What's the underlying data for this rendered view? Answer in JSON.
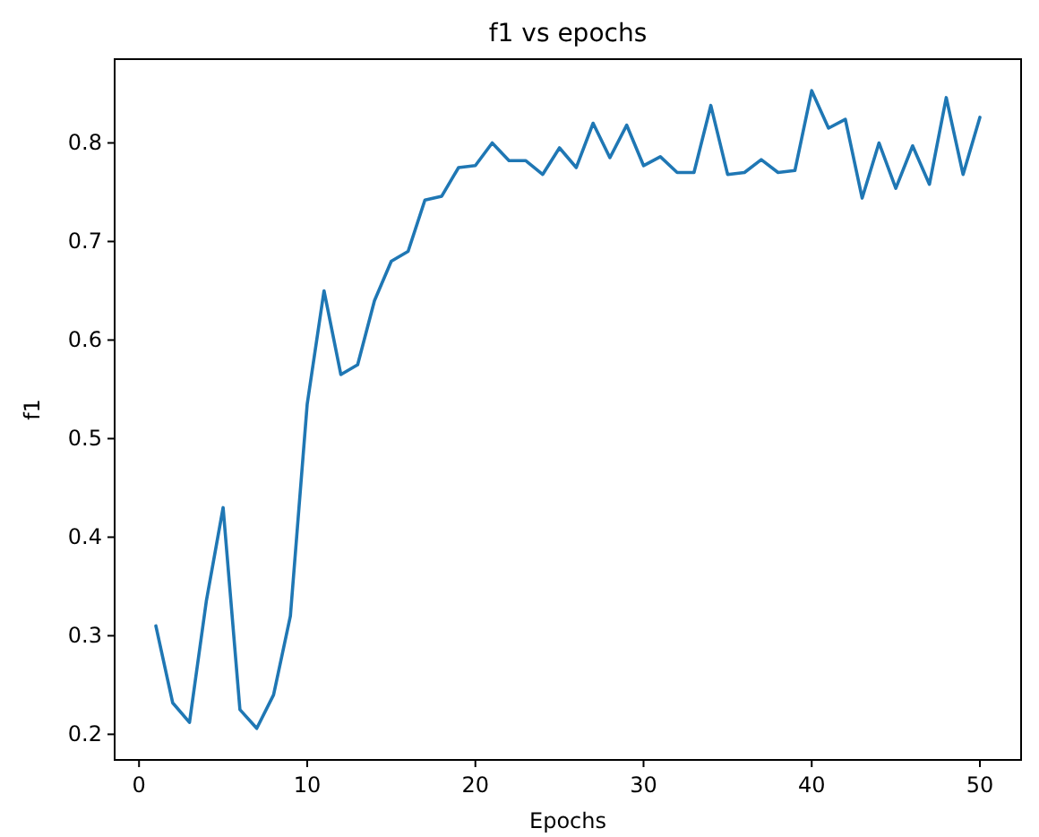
{
  "chart_data": {
    "type": "line",
    "title": "f1 vs epochs",
    "xlabel": "Epochs",
    "ylabel": "f1",
    "x": [
      1,
      2,
      3,
      4,
      5,
      6,
      7,
      8,
      9,
      10,
      11,
      12,
      13,
      14,
      15,
      16,
      17,
      18,
      19,
      20,
      21,
      22,
      23,
      24,
      25,
      26,
      27,
      28,
      29,
      30,
      31,
      32,
      33,
      34,
      35,
      36,
      37,
      38,
      39,
      40,
      41,
      42,
      43,
      44,
      45,
      46,
      47,
      48,
      49,
      50
    ],
    "series": [
      {
        "color": "#1f77b4",
        "values": [
          0.31,
          0.232,
          0.212,
          0.335,
          0.43,
          0.225,
          0.206,
          0.24,
          0.32,
          0.535,
          0.65,
          0.565,
          0.575,
          0.64,
          0.68,
          0.69,
          0.742,
          0.746,
          0.775,
          0.777,
          0.8,
          0.782,
          0.782,
          0.768,
          0.795,
          0.775,
          0.82,
          0.785,
          0.818,
          0.777,
          0.786,
          0.77,
          0.77,
          0.838,
          0.768,
          0.77,
          0.783,
          0.77,
          0.772,
          0.853,
          0.815,
          0.824,
          0.744,
          0.8,
          0.754,
          0.797,
          0.758,
          0.846,
          0.768,
          0.826
        ]
      }
    ],
    "xlim": [
      -1.45,
      52.45
    ],
    "ylim": [
      0.174,
      0.885
    ],
    "xticks": [
      0,
      10,
      20,
      30,
      40,
      50
    ],
    "yticks": [
      0.2,
      0.3,
      0.4,
      0.5,
      0.6,
      0.7,
      0.8
    ],
    "grid": false,
    "marker": "none",
    "line_style": "solid"
  }
}
